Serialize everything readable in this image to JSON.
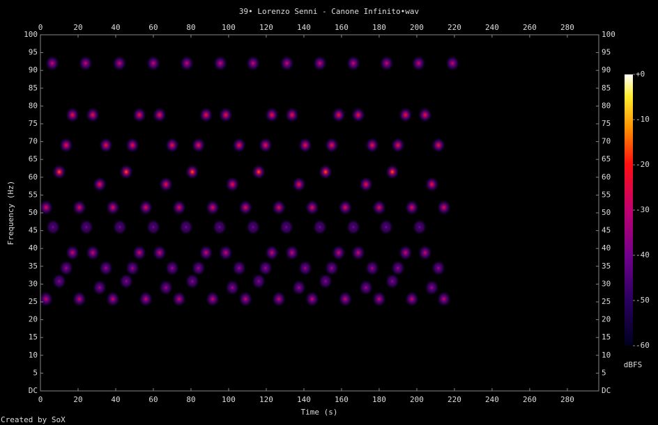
{
  "chart_data": {
    "type": "spectrogram",
    "title": "39• Lorenzo Senni - Canone Infinito•wav",
    "xlabel": "Time (s)",
    "ylabel": "Frequency (Hz)",
    "colorbar_label": "dBFS",
    "footer": "Created by SoX",
    "xlim": [
      0,
      296.7
    ],
    "xticks": [
      0,
      20,
      40,
      60,
      80,
      100,
      120,
      140,
      160,
      180,
      200,
      220,
      240,
      260,
      280
    ],
    "ylim": [
      0,
      100
    ],
    "yticks": [
      {
        "value": 0,
        "label": "DC"
      },
      5,
      10,
      15,
      20,
      25,
      30,
      35,
      40,
      45,
      50,
      55,
      60,
      65,
      70,
      75,
      80,
      85,
      90,
      95,
      100
    ],
    "clim": [
      -60,
      0
    ],
    "cticks": [
      {
        "value": 0,
        "label": "+0"
      },
      -10,
      -20,
      -30,
      -40,
      -50,
      -60
    ],
    "rows": [
      {
        "frequency": 92,
        "level": -25,
        "times": [
          6.3,
          24,
          42,
          60,
          77.8,
          95.6,
          113,
          131,
          148.5,
          166.3,
          184,
          201,
          219
        ]
      },
      {
        "frequency": 77.5,
        "level": -20,
        "times": [
          17,
          27.8,
          52.6,
          63.3,
          88,
          98.5,
          123,
          133.7,
          158.5,
          168.9,
          194,
          204.4
        ]
      },
      {
        "frequency": 69,
        "level": -20,
        "times": [
          13.7,
          34.8,
          48.9,
          70,
          84,
          105.6,
          119.6,
          140.7,
          154.8,
          176.3,
          190,
          211.5
        ]
      },
      {
        "frequency": 61.5,
        "level": -15,
        "times": [
          10,
          45.6,
          80.7,
          116,
          151.5,
          187
        ]
      },
      {
        "frequency": 58,
        "level": -20,
        "times": [
          31.5,
          66.7,
          102,
          137.4,
          173,
          208
        ]
      },
      {
        "frequency": 51.5,
        "level": -22,
        "times": [
          3,
          20.7,
          38.5,
          56,
          73.7,
          91.5,
          109,
          126.7,
          144.4,
          162,
          180,
          197.4,
          214.4
        ]
      },
      {
        "frequency": 46,
        "level": -35,
        "times": [
          6.7,
          24.4,
          42.2,
          60,
          77.4,
          95.2,
          113,
          130.7,
          148.5,
          166.3,
          183.7,
          201.5
        ]
      },
      {
        "frequency": 38.8,
        "level": -25,
        "times": [
          17,
          27.8,
          52.6,
          63.3,
          88,
          98.5,
          123,
          133.7,
          158.5,
          168.9,
          194,
          204.4
        ]
      },
      {
        "frequency": 34.5,
        "level": -30,
        "times": [
          13.7,
          34.8,
          48.9,
          70,
          84,
          105.6,
          119.6,
          140.7,
          154.8,
          176.3,
          190,
          211.5
        ]
      },
      {
        "frequency": 30.8,
        "level": -32,
        "times": [
          10,
          45.6,
          80.7,
          116,
          151.5,
          187
        ]
      },
      {
        "frequency": 29,
        "level": -30,
        "times": [
          31.5,
          66.7,
          102,
          137.4,
          173,
          208
        ]
      },
      {
        "frequency": 25.8,
        "level": -25,
        "times": [
          3,
          20.7,
          38.5,
          56,
          73.7,
          91.5,
          109,
          126.7,
          144.4,
          162,
          180,
          197.4,
          214.4
        ]
      }
    ]
  }
}
